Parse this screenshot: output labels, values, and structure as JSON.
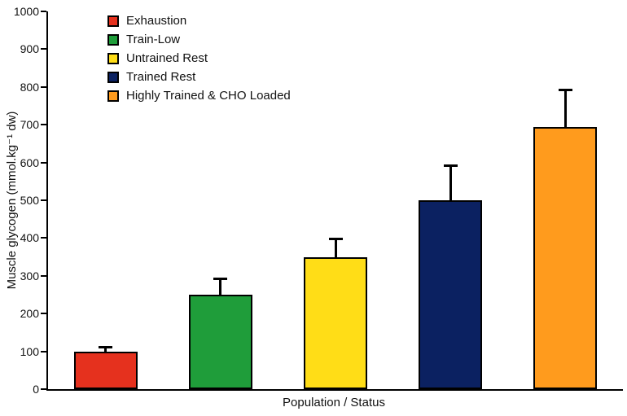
{
  "chart_data": {
    "type": "bar",
    "title": "",
    "xlabel": "Population / Status",
    "ylabel": "Muscle glycogen (mmol.kg⁻¹ dw)",
    "ylim": [
      0,
      1000
    ],
    "yticks": [
      0,
      100,
      200,
      300,
      400,
      500,
      600,
      700,
      800,
      900,
      1000
    ],
    "categories": [
      "Exhaustion",
      "Train-Low",
      "Untrained Rest",
      "Trained Rest",
      "Highly Trained & CHO Loaded"
    ],
    "values": [
      100,
      250,
      350,
      500,
      695
    ],
    "errors": [
      15,
      45,
      50,
      95,
      100
    ],
    "colors": [
      "#E5311E",
      "#1F9D3A",
      "#FFDD17",
      "#0B2161",
      "#FF9B1D"
    ],
    "grid": false,
    "legend_position": "top-left"
  }
}
